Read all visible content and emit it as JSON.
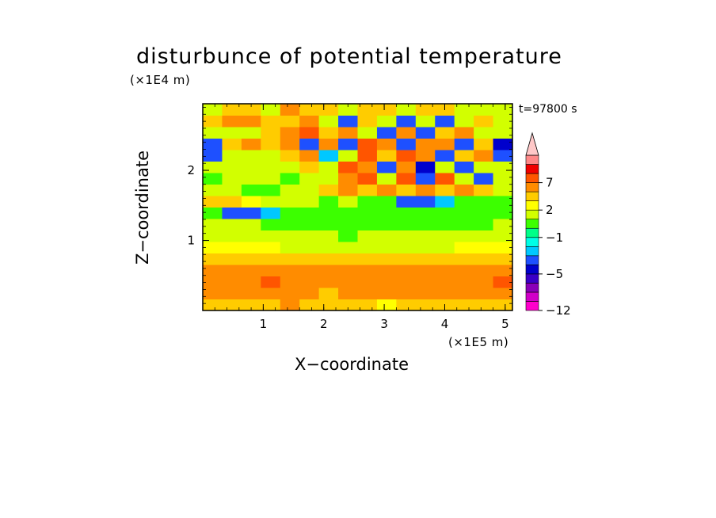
{
  "chart_data": {
    "type": "heatmap",
    "title": "disturbunce of potential temperature",
    "xlabel": "X−coordinate",
    "ylabel": "Z−coordinate",
    "x_unit": "(×1E5 m)",
    "y_unit": "(×1E4 m)",
    "time_label": "t=97800 s",
    "xlim": [
      0,
      5.12
    ],
    "ylim": [
      0,
      2.95
    ],
    "x_ticks": [
      1,
      2,
      3,
      4,
      5
    ],
    "x_tick_labels": [
      "1",
      "2",
      "3",
      "4",
      "5"
    ],
    "y_ticks": [
      1,
      2
    ],
    "y_tick_labels": [
      "1",
      "2"
    ],
    "colorbar": {
      "levels": [
        -12,
        -10,
        -8,
        -6,
        -5,
        -4,
        -3,
        -2,
        -1,
        0,
        1,
        2,
        3,
        5,
        7,
        9,
        11
      ],
      "colors": [
        "#ff00cc",
        "#d100c8",
        "#8a00b8",
        "#3a00c8",
        "#0000cc",
        "#1e50ff",
        "#00c8ff",
        "#00ffe6",
        "#00ff88",
        "#3cff00",
        "#d2ff00",
        "#ffff00",
        "#ffcc00",
        "#ff8c00",
        "#ff5500",
        "#f00000",
        "#ff8888",
        "#ffc8c8"
      ],
      "tick_labels": [
        "7",
        "2",
        "−1",
        "−5",
        "−12"
      ],
      "tick_values": [
        7,
        2,
        -1,
        -5,
        -12
      ],
      "extend_max": true
    },
    "rows_z": [
      0.08,
      0.24,
      0.4,
      0.56,
      0.72,
      0.88,
      1.04,
      1.2,
      1.36,
      1.52,
      1.68,
      1.84,
      2.0,
      2.16,
      2.32,
      2.48,
      2.64,
      2.8
    ],
    "cols_x": [
      0.16,
      0.48,
      0.8,
      1.12,
      1.44,
      1.76,
      2.08,
      2.4,
      2.72,
      3.04,
      3.36,
      3.68,
      4.0,
      4.32,
      4.64,
      4.96
    ],
    "z": [
      [
        2,
        2,
        2,
        2,
        3,
        2,
        2,
        2,
        2,
        1,
        2,
        2,
        2,
        2,
        2,
        2
      ],
      [
        3,
        4,
        3,
        4,
        3,
        3,
        2,
        3,
        3,
        3,
        3,
        3,
        3,
        3,
        4,
        3
      ],
      [
        4,
        4,
        4,
        5,
        4,
        3,
        3,
        4,
        4,
        4,
        4,
        4,
        3,
        4,
        4,
        5
      ],
      [
        3,
        3,
        4,
        3,
        3,
        3,
        3,
        3,
        3,
        3,
        3,
        3,
        3,
        3,
        3,
        3
      ],
      [
        2,
        2,
        2,
        2,
        2,
        2,
        2,
        2,
        2,
        2,
        2,
        2,
        2,
        2,
        2,
        2
      ],
      [
        1,
        1,
        1,
        1,
        0,
        0,
        0,
        0,
        0,
        0,
        0,
        0,
        0,
        1,
        1,
        1
      ],
      [
        0,
        0,
        0,
        0,
        0,
        0,
        0,
        -1,
        0,
        0,
        0,
        0,
        0,
        0,
        0,
        0
      ],
      [
        0,
        0,
        0,
        -1,
        -1,
        -1,
        -1,
        -1,
        -1,
        -1,
        -1,
        -1,
        -1,
        -1,
        -1,
        0
      ],
      [
        -1,
        -5,
        -5,
        -4,
        -1,
        -1,
        -1,
        -1,
        -1,
        -1,
        -1,
        -1,
        -1,
        -1,
        -1,
        -1
      ],
      [
        2,
        2,
        1,
        0,
        0,
        0,
        -1,
        0,
        -1,
        -1,
        -5,
        -5,
        -4,
        -1,
        -1,
        -1
      ],
      [
        0,
        0,
        -1,
        -1,
        0,
        0,
        2,
        3,
        2,
        3,
        2,
        3,
        2,
        3,
        2,
        0
      ],
      [
        -1,
        0,
        0,
        0,
        -1,
        0,
        0,
        3,
        5,
        0,
        5,
        -5,
        5,
        0,
        -5,
        0
      ],
      [
        0,
        0,
        0,
        0,
        0,
        2,
        0,
        5,
        3,
        -5,
        3,
        -6,
        0,
        -5,
        0,
        0
      ],
      [
        -5,
        0,
        0,
        0,
        2,
        3,
        -4,
        0,
        5,
        2,
        5,
        3,
        -5,
        2,
        3,
        -5
      ],
      [
        -5,
        2,
        3,
        2,
        3,
        -5,
        3,
        -5,
        5,
        3,
        -5,
        3,
        3,
        -5,
        2,
        -6
      ],
      [
        0,
        0,
        0,
        2,
        3,
        5,
        2,
        3,
        0,
        -5,
        3,
        -5,
        2,
        3,
        0,
        0
      ],
      [
        2,
        3,
        3,
        2,
        2,
        3,
        0,
        -5,
        2,
        0,
        -5,
        0,
        -5,
        0,
        2,
        0
      ],
      [
        0,
        2,
        2,
        0,
        3,
        2,
        2,
        0,
        2,
        2,
        0,
        2,
        2,
        0,
        0,
        0
      ]
    ]
  }
}
